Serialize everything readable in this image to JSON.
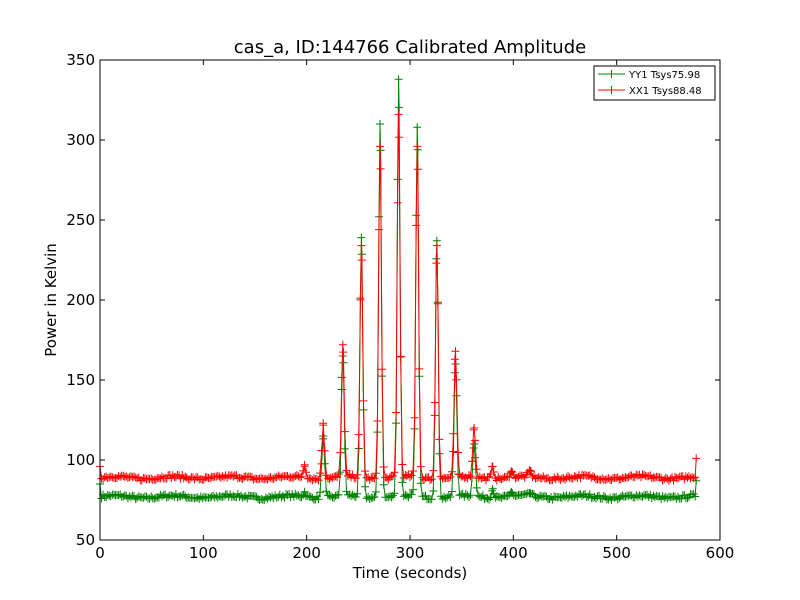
{
  "chart_data": {
    "type": "line",
    "title": "cas_a, ID:144766 Calibrated Amplitude",
    "xlabel": "Time (seconds)",
    "ylabel": "Power in Kelvin",
    "xlim": [
      0,
      600
    ],
    "ylim": [
      50,
      350
    ],
    "xticks": [
      0,
      100,
      200,
      300,
      400,
      500,
      600
    ],
    "yticks": [
      50,
      100,
      150,
      200,
      250,
      300,
      350
    ],
    "grid": false,
    "legend_position": "top-right",
    "series": [
      {
        "name": "YY1 Tsys75.98",
        "color": "#008000",
        "baseline": 77,
        "start": [
          0,
          85
        ],
        "end": [
          577,
          87
        ],
        "peaks": [
          {
            "x": 198,
            "y": 80
          },
          {
            "x": 216,
            "y": 115
          },
          {
            "x": 235,
            "y": 165
          },
          {
            "x": 253,
            "y": 239
          },
          {
            "x": 271,
            "y": 310
          },
          {
            "x": 289,
            "y": 338
          },
          {
            "x": 307,
            "y": 308
          },
          {
            "x": 326,
            "y": 237
          },
          {
            "x": 344,
            "y": 160
          },
          {
            "x": 362,
            "y": 110
          },
          {
            "x": 380,
            "y": 82
          },
          {
            "x": 398,
            "y": 80
          },
          {
            "x": 416,
            "y": 79
          }
        ]
      },
      {
        "name": "XX1 Tsys88.48",
        "color": "#ff0000",
        "baseline": 89,
        "start": [
          0,
          96
        ],
        "end": [
          577,
          101
        ],
        "peaks": [
          {
            "x": 198,
            "y": 97
          },
          {
            "x": 216,
            "y": 123
          },
          {
            "x": 235,
            "y": 172
          },
          {
            "x": 253,
            "y": 234
          },
          {
            "x": 271,
            "y": 296
          },
          {
            "x": 289,
            "y": 316
          },
          {
            "x": 307,
            "y": 296
          },
          {
            "x": 326,
            "y": 234
          },
          {
            "x": 344,
            "y": 168
          },
          {
            "x": 362,
            "y": 120
          },
          {
            "x": 380,
            "y": 96
          },
          {
            "x": 398,
            "y": 93
          },
          {
            "x": 416,
            "y": 93
          }
        ]
      }
    ]
  }
}
